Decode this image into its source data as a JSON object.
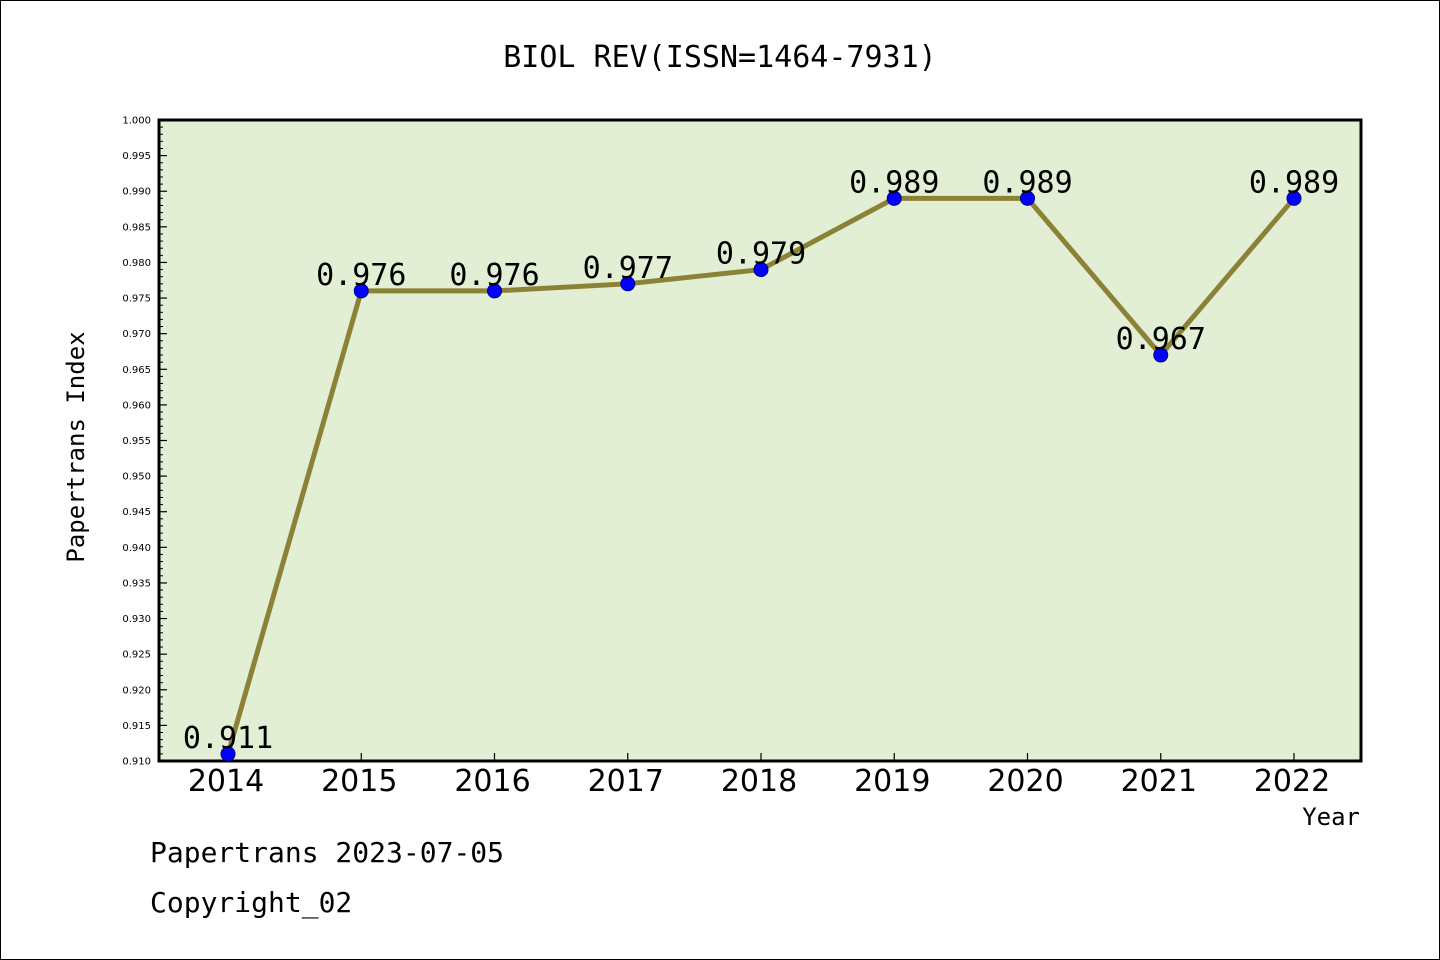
{
  "chart_data": {
    "type": "line",
    "title": "BIOL REV(ISSN=1464-7931)",
    "xlabel": "Year",
    "ylabel": "Papertrans Index",
    "x": [
      "2014",
      "2015",
      "2016",
      "2017",
      "2018",
      "2019",
      "2020",
      "2021",
      "2022"
    ],
    "series": [
      {
        "values": [
          0.911,
          0.976,
          0.976,
          0.977,
          0.979,
          0.989,
          0.989,
          0.967,
          0.989
        ],
        "data_labels": [
          "0.911",
          "0.976",
          "0.976",
          "0.977",
          "0.979",
          "0.989",
          "0.989",
          "0.967",
          "0.989"
        ],
        "line_color": "#8b8235",
        "marker_color": "#0000ff"
      }
    ],
    "ylim": [
      0.91,
      1.0
    ],
    "yticks": [
      "0.910",
      "0.915",
      "0.920",
      "0.925",
      "0.930",
      "0.935",
      "0.940",
      "0.945",
      "0.950",
      "0.955",
      "0.960",
      "0.965",
      "0.970",
      "0.975",
      "0.980",
      "0.985",
      "0.990",
      "0.995",
      "1.000"
    ],
    "plot_background": "#e2efd5",
    "grid": false
  },
  "footer": {
    "line1": "Papertrans 2023-07-05",
    "line2": "Copyright_02"
  }
}
